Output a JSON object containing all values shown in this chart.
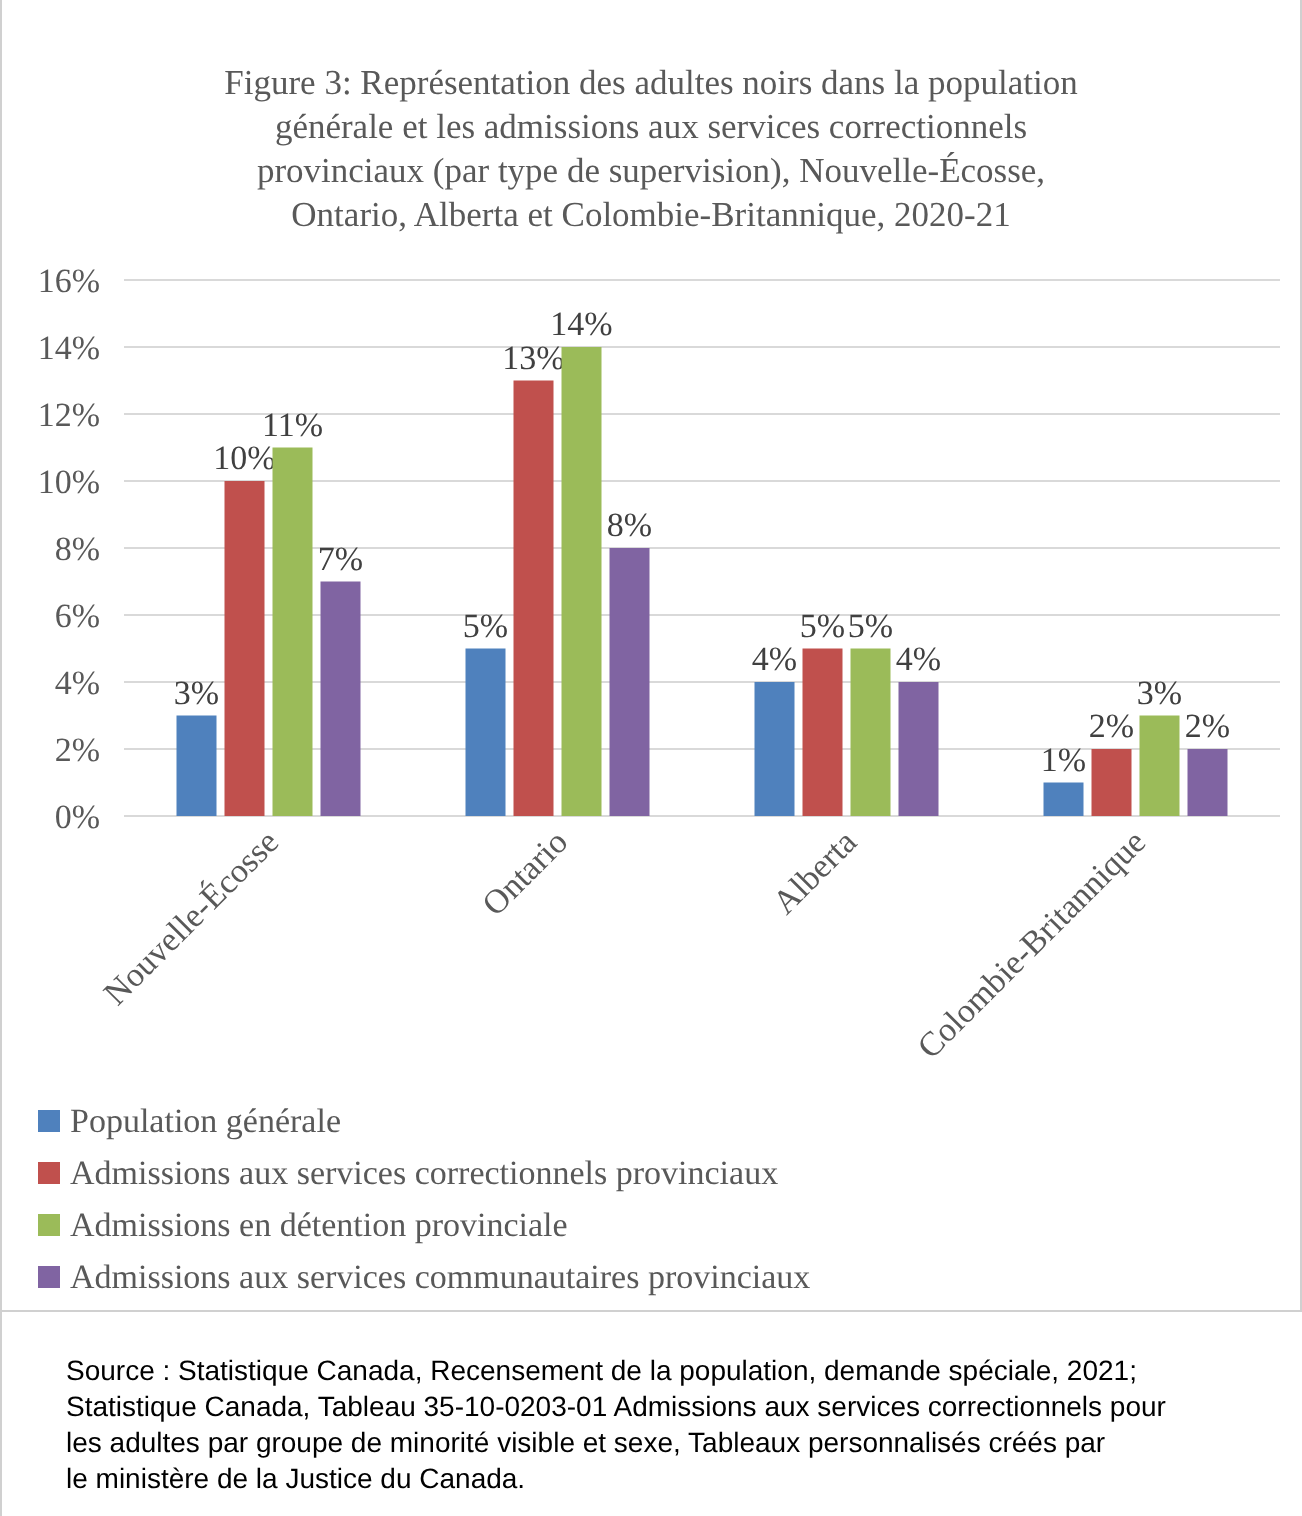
{
  "chart_data": {
    "type": "bar",
    "title": "Figure 3: Représentation des adultes noirs dans la population générale et les admissions aux services correctionnels provinciaux (par type de supervision), Nouvelle-Écosse, Ontario, Alberta et Colombie-Britannique, 2020-21",
    "categories": [
      "Nouvelle-Écosse",
      "Ontario",
      "Alberta",
      "Colombie-Britannique"
    ],
    "series": [
      {
        "name": "Population générale",
        "color": "#4f81bd",
        "values": [
          3,
          5,
          4,
          1
        ],
        "value_labels": [
          "3%",
          "5%",
          "4%",
          "1%"
        ]
      },
      {
        "name": "Admissions aux services correctionnels provinciaux",
        "color": "#c0504d",
        "values": [
          10,
          13,
          5,
          2
        ],
        "value_labels": [
          "10%",
          "13%",
          "5%",
          "2%"
        ]
      },
      {
        "name": "Admissions en détention provinciale",
        "color": "#9bbb59",
        "values": [
          11,
          14,
          5,
          3
        ],
        "value_labels": [
          "11%",
          "14%",
          "5%",
          "3%"
        ]
      },
      {
        "name": "Admissions aux services communautaires provinciaux",
        "color": "#8064a2",
        "values": [
          7,
          8,
          4,
          2
        ],
        "value_labels": [
          "7%",
          "8%",
          "4%",
          "2%"
        ]
      }
    ],
    "ylim": [
      0,
      16
    ],
    "yticks": [
      {
        "value": 0,
        "label": "0%"
      },
      {
        "value": 2,
        "label": "2%"
      },
      {
        "value": 4,
        "label": "4%"
      },
      {
        "value": 6,
        "label": "6%"
      },
      {
        "value": 8,
        "label": "8%"
      },
      {
        "value": 10,
        "label": "10%"
      },
      {
        "value": 12,
        "label": "12%"
      },
      {
        "value": 14,
        "label": "14%"
      },
      {
        "value": 16,
        "label": "16%"
      }
    ],
    "grid": "y",
    "legend": "bottom",
    "annotations": [
      "Source : Statistique Canada, Recensement de la population, demande spéciale, 2021; Statistique Canada, Tableau 35-10-0203-01 Admissions aux services correctionnels pour les adultes par groupe de minorité visible et sexe, Tableaux personnalisés créés par le ministère de la Justice du Canada."
    ]
  }
}
